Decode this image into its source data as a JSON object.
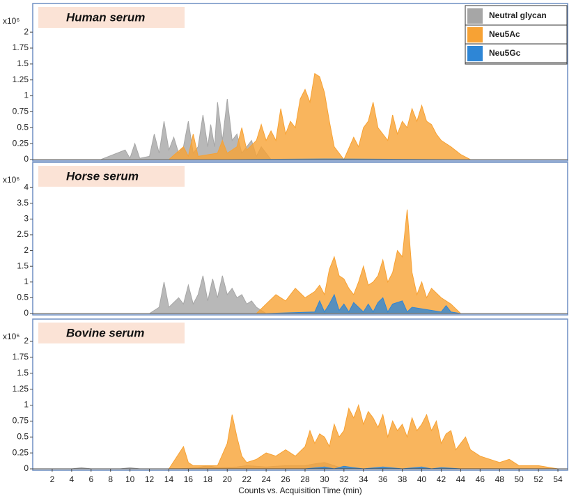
{
  "chart_data": [
    {
      "type": "area",
      "title": "Human serum",
      "y_scale_label": "x10⁶",
      "xlim": [
        0,
        55
      ],
      "ylim": [
        0,
        2.45
      ],
      "yticks": [
        0,
        0.25,
        0.5,
        0.75,
        1,
        1.25,
        1.5,
        1.75,
        2
      ],
      "series": [
        {
          "name": "Neutral glycan",
          "color": "#a6a6a6",
          "x": [
            7,
            9.5,
            10,
            10.5,
            11,
            12,
            12.5,
            13,
            13.5,
            14,
            14.5,
            15,
            15.5,
            16,
            16.5,
            17,
            17.5,
            18,
            18.3,
            18.7,
            19,
            19.5,
            20,
            20.5,
            21,
            21.5,
            22,
            22.5,
            23,
            23.5,
            24.5
          ],
          "values": [
            0,
            0.15,
            0.02,
            0.25,
            0.02,
            0.05,
            0.4,
            0.1,
            0.6,
            0.15,
            0.35,
            0.1,
            0.2,
            0.6,
            0.1,
            0.2,
            0.7,
            0.2,
            0.55,
            0.2,
            0.9,
            0.3,
            0.95,
            0.3,
            0.4,
            0.1,
            0.2,
            0.3,
            0.05,
            0.2,
            0
          ]
        },
        {
          "name": "Neu5Ac",
          "color": "#f7a234",
          "x": [
            14,
            15.5,
            16,
            16.5,
            17,
            19,
            19.5,
            20,
            21,
            21.5,
            22,
            23,
            23.5,
            24,
            24.5,
            25,
            25.5,
            26,
            26.5,
            27,
            27.5,
            28,
            28.5,
            29,
            29.5,
            30,
            30.5,
            31,
            31.5,
            32,
            33,
            33.5,
            34,
            34.5,
            35,
            35.5,
            36,
            36.5,
            37,
            37.5,
            38,
            38.5,
            39,
            39.5,
            40,
            40.5,
            41,
            41.5,
            42,
            43,
            44,
            45
          ],
          "values": [
            0,
            0.2,
            0.05,
            0.4,
            0.05,
            0.1,
            0.3,
            0.1,
            0.2,
            0.5,
            0.15,
            0.3,
            0.55,
            0.3,
            0.45,
            0.3,
            0.8,
            0.4,
            0.6,
            0.5,
            0.95,
            1.1,
            0.9,
            1.35,
            1.3,
            1.05,
            0.6,
            0.2,
            0.1,
            0,
            0.35,
            0.2,
            0.5,
            0.6,
            0.9,
            0.5,
            0.4,
            0.3,
            0.7,
            0.4,
            0.6,
            0.5,
            0.8,
            0.6,
            0.85,
            0.6,
            0.55,
            0.4,
            0.3,
            0.2,
            0.08,
            0
          ]
        },
        {
          "name": "Neu5Gc",
          "color": "#2e86d6",
          "x": [
            20,
            30,
            45
          ],
          "values": [
            0,
            0.01,
            0
          ]
        }
      ]
    },
    {
      "type": "area",
      "title": "Horse serum",
      "y_scale_label": "x10⁶",
      "xlim": [
        0,
        55
      ],
      "ylim": [
        0,
        4.8
      ],
      "yticks": [
        0,
        0.5,
        1,
        1.5,
        2,
        2.5,
        3,
        3.5,
        4
      ],
      "series": [
        {
          "color": "#a6a6a6",
          "x": [
            12,
            13,
            13.5,
            14,
            15,
            15.5,
            16,
            16.5,
            17,
            17.5,
            18,
            18.5,
            19,
            19.5,
            20,
            20.5,
            21,
            21.5,
            22,
            22.5,
            23,
            24
          ],
          "values": [
            0,
            0.2,
            1.0,
            0.2,
            0.5,
            0.3,
            0.9,
            0.3,
            0.6,
            1.2,
            0.4,
            1.1,
            0.5,
            1.2,
            0.6,
            0.8,
            0.5,
            0.6,
            0.3,
            0.4,
            0.2,
            0
          ]
        },
        {
          "color": "#f7a234",
          "x": [
            23,
            24,
            25,
            26,
            27,
            28,
            29,
            29.5,
            30,
            30.5,
            31,
            31.5,
            32,
            32.5,
            33,
            33.5,
            34,
            34.5,
            35,
            35.5,
            36,
            36.5,
            37,
            37.5,
            38,
            38.5,
            39,
            39.5,
            40,
            40.5,
            41,
            42,
            43,
            44
          ],
          "values": [
            0,
            0.3,
            0.6,
            0.4,
            0.8,
            0.5,
            0.7,
            0.9,
            0.6,
            1.4,
            1.8,
            1.2,
            1.1,
            0.8,
            0.6,
            1.0,
            1.5,
            0.9,
            1.0,
            1.2,
            1.7,
            1.0,
            1.3,
            2.0,
            1.8,
            3.3,
            1.3,
            0.6,
            1.0,
            0.5,
            0.8,
            0.5,
            0.3,
            0
          ]
        },
        {
          "color": "#2e86d6",
          "x": [
            24,
            29,
            29.5,
            30,
            30.5,
            31,
            31.5,
            32,
            32.5,
            33,
            34,
            34.5,
            35,
            35.5,
            36,
            36.5,
            37,
            38,
            38.5,
            39,
            42,
            42.5,
            43,
            44
          ],
          "values": [
            0,
            0.05,
            0.4,
            0.05,
            0.3,
            0.6,
            0.1,
            0.3,
            0.05,
            0.35,
            0.05,
            0.3,
            0.05,
            0.35,
            0.5,
            0.05,
            0.3,
            0.4,
            0.05,
            0.2,
            0.05,
            0.25,
            0.05,
            0
          ]
        }
      ]
    },
    {
      "type": "area",
      "title": "Bovine serum",
      "y_scale_label": "x10⁶",
      "x_label": "Counts vs. Acquisition Time (min)",
      "xlim": [
        0,
        55
      ],
      "ylim": [
        0,
        2.35
      ],
      "xticks": [
        2,
        4,
        6,
        8,
        10,
        12,
        14,
        16,
        18,
        20,
        22,
        24,
        26,
        28,
        30,
        32,
        34,
        36,
        38,
        40,
        42,
        44,
        46,
        48,
        50,
        52,
        54
      ],
      "yticks": [
        0,
        0.25,
        0.5,
        0.75,
        1,
        1.25,
        1.5,
        1.75,
        2
      ],
      "series": [
        {
          "color": "#a6a6a6",
          "x": [
            4,
            5,
            6,
            9,
            10,
            11,
            15,
            17,
            18,
            19,
            21,
            22,
            24,
            26,
            28,
            29,
            30,
            31,
            32
          ],
          "values": [
            0,
            0.02,
            0,
            0,
            0.02,
            0,
            0,
            0.02,
            0.05,
            0.02,
            0.03,
            0.05,
            0.03,
            0.05,
            0.05,
            0.08,
            0.1,
            0.05,
            0
          ]
        },
        {
          "color": "#f7a234",
          "x": [
            14,
            15.5,
            16,
            16.5,
            19,
            20,
            20.5,
            21,
            21.5,
            22,
            23,
            24,
            25,
            26,
            27,
            28,
            28.5,
            29,
            29.5,
            30,
            30.5,
            31,
            31.5,
            32,
            32.5,
            33,
            33.5,
            34,
            34.5,
            35,
            35.5,
            36,
            36.5,
            37,
            37.5,
            38,
            38.5,
            39,
            39.5,
            40,
            40.5,
            41,
            41.5,
            42,
            42.5,
            43,
            43.5,
            44,
            44.5,
            45,
            46,
            48,
            49,
            50,
            52,
            54
          ],
          "values": [
            0,
            0.35,
            0.1,
            0.05,
            0.05,
            0.4,
            0.85,
            0.5,
            0.2,
            0.1,
            0.15,
            0.25,
            0.2,
            0.3,
            0.2,
            0.35,
            0.6,
            0.4,
            0.55,
            0.5,
            0.35,
            0.7,
            0.5,
            0.6,
            0.95,
            0.8,
            1.0,
            0.7,
            0.9,
            0.8,
            0.65,
            0.85,
            0.5,
            0.75,
            0.6,
            0.7,
            0.5,
            0.8,
            0.6,
            0.7,
            0.85,
            0.6,
            0.75,
            0.4,
            0.55,
            0.6,
            0.3,
            0.4,
            0.5,
            0.3,
            0.2,
            0.1,
            0.15,
            0.05,
            0.05,
            0
          ]
        },
        {
          "color": "#2e86d6",
          "x": [
            28,
            30,
            31,
            32,
            33,
            34,
            36,
            38,
            40,
            41,
            42,
            44
          ],
          "values": [
            0,
            0.03,
            0,
            0.04,
            0.02,
            0,
            0.03,
            0,
            0.03,
            0,
            0.02,
            0
          ]
        }
      ]
    }
  ]
}
